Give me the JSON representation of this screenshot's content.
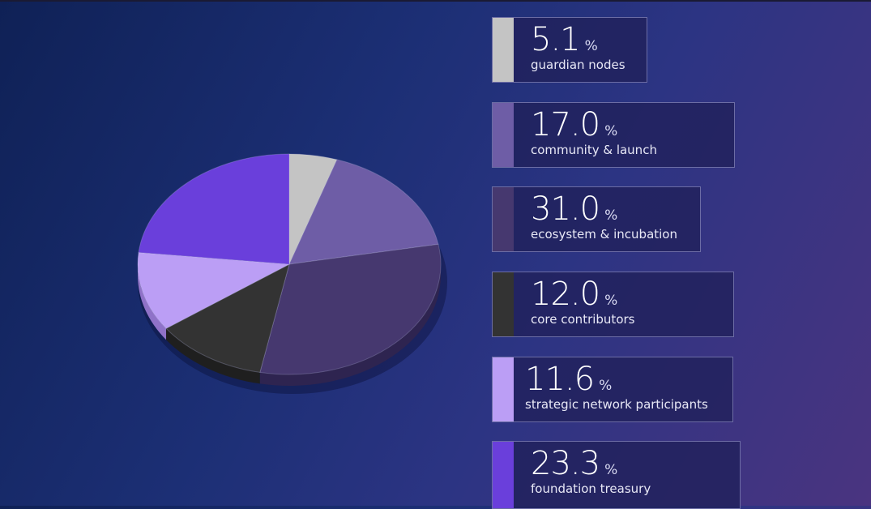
{
  "chart_data": {
    "type": "pie",
    "unit": "%",
    "slices": [
      {
        "label": "guardian nodes",
        "display": "5.1",
        "value": 5.1,
        "color": "#c4c4c4",
        "side": "#8f8f8f"
      },
      {
        "label": "community & launch",
        "display": "17.0",
        "value": 17.0,
        "color": "#6e5da6",
        "side": "#4c3f78"
      },
      {
        "label": "ecosystem & incubation",
        "display": "31.0",
        "value": 31.0,
        "color": "#46386f",
        "side": "#2e2450"
      },
      {
        "label": "core contributors",
        "display": "12.0",
        "value": 12.0,
        "color": "#333333",
        "side": "#1f1f1f"
      },
      {
        "label": "strategic network participants",
        "display": "11.6",
        "value": 11.6,
        "color": "#bb9ef5",
        "side": "#8f72c8"
      },
      {
        "label": "foundation treasury",
        "display": "23.3",
        "value": 23.3,
        "color": "#6a3fdb",
        "side": "#4a2aa0"
      }
    ]
  },
  "legend": [
    {
      "value": "5.1",
      "unit": "%",
      "label": "guardian nodes",
      "color": "#c4c4c4"
    },
    {
      "value": "17.0",
      "unit": "%",
      "label": "community & launch",
      "color": "#6e5da6"
    },
    {
      "value": "31.0",
      "unit": "%",
      "label": "ecosystem & incubation",
      "color": "#46386f"
    },
    {
      "value": "12.0",
      "unit": "%",
      "label": "core contributors",
      "color": "#333333"
    },
    {
      "value": "11.6",
      "unit": "%",
      "label": "strategic network participants",
      "color": "#bb9ef5"
    },
    {
      "value": "23.3",
      "unit": "%",
      "label": "foundation treasury",
      "color": "#6a3fdb"
    }
  ]
}
